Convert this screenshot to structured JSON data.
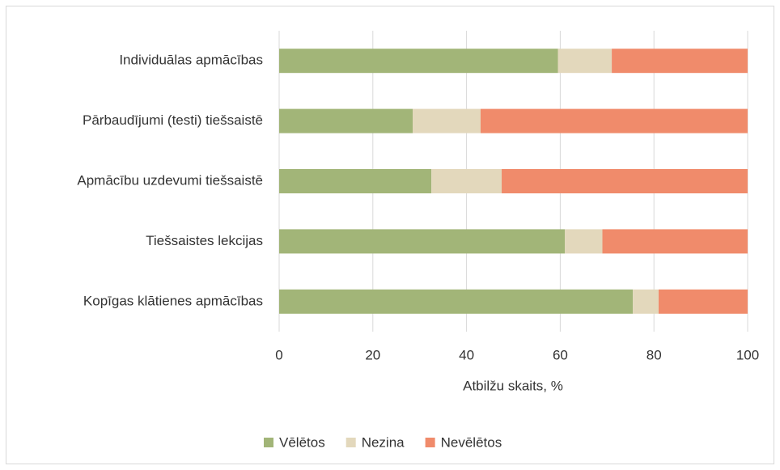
{
  "chart_data": {
    "type": "stacked-barh",
    "categories": [
      "Individuālas apmācības",
      "Pārbaudījumi (testi) tiešsaistē",
      "Apmācību uzdevumi tiešsaistē",
      "Tiešsaistes lekcijas",
      "Kopīgas klātienes apmācības"
    ],
    "series": [
      {
        "name": "Vēlētos",
        "color": "#a2b578",
        "values": [
          59.5,
          28.5,
          32.5,
          61,
          75.5
        ]
      },
      {
        "name": "Nezina",
        "color": "#e3d8bc",
        "values": [
          11.5,
          14.5,
          15,
          8,
          5.5
        ]
      },
      {
        "name": "Nevēlētos",
        "color": "#f08b6b",
        "values": [
          29,
          57,
          52.5,
          31,
          19
        ]
      }
    ],
    "xlabel": "Atbilžu skaits, %",
    "xlim": [
      0,
      100
    ],
    "xticks": [
      0,
      20,
      40,
      60,
      80,
      100
    ],
    "grid": true,
    "legend": "bottom"
  }
}
